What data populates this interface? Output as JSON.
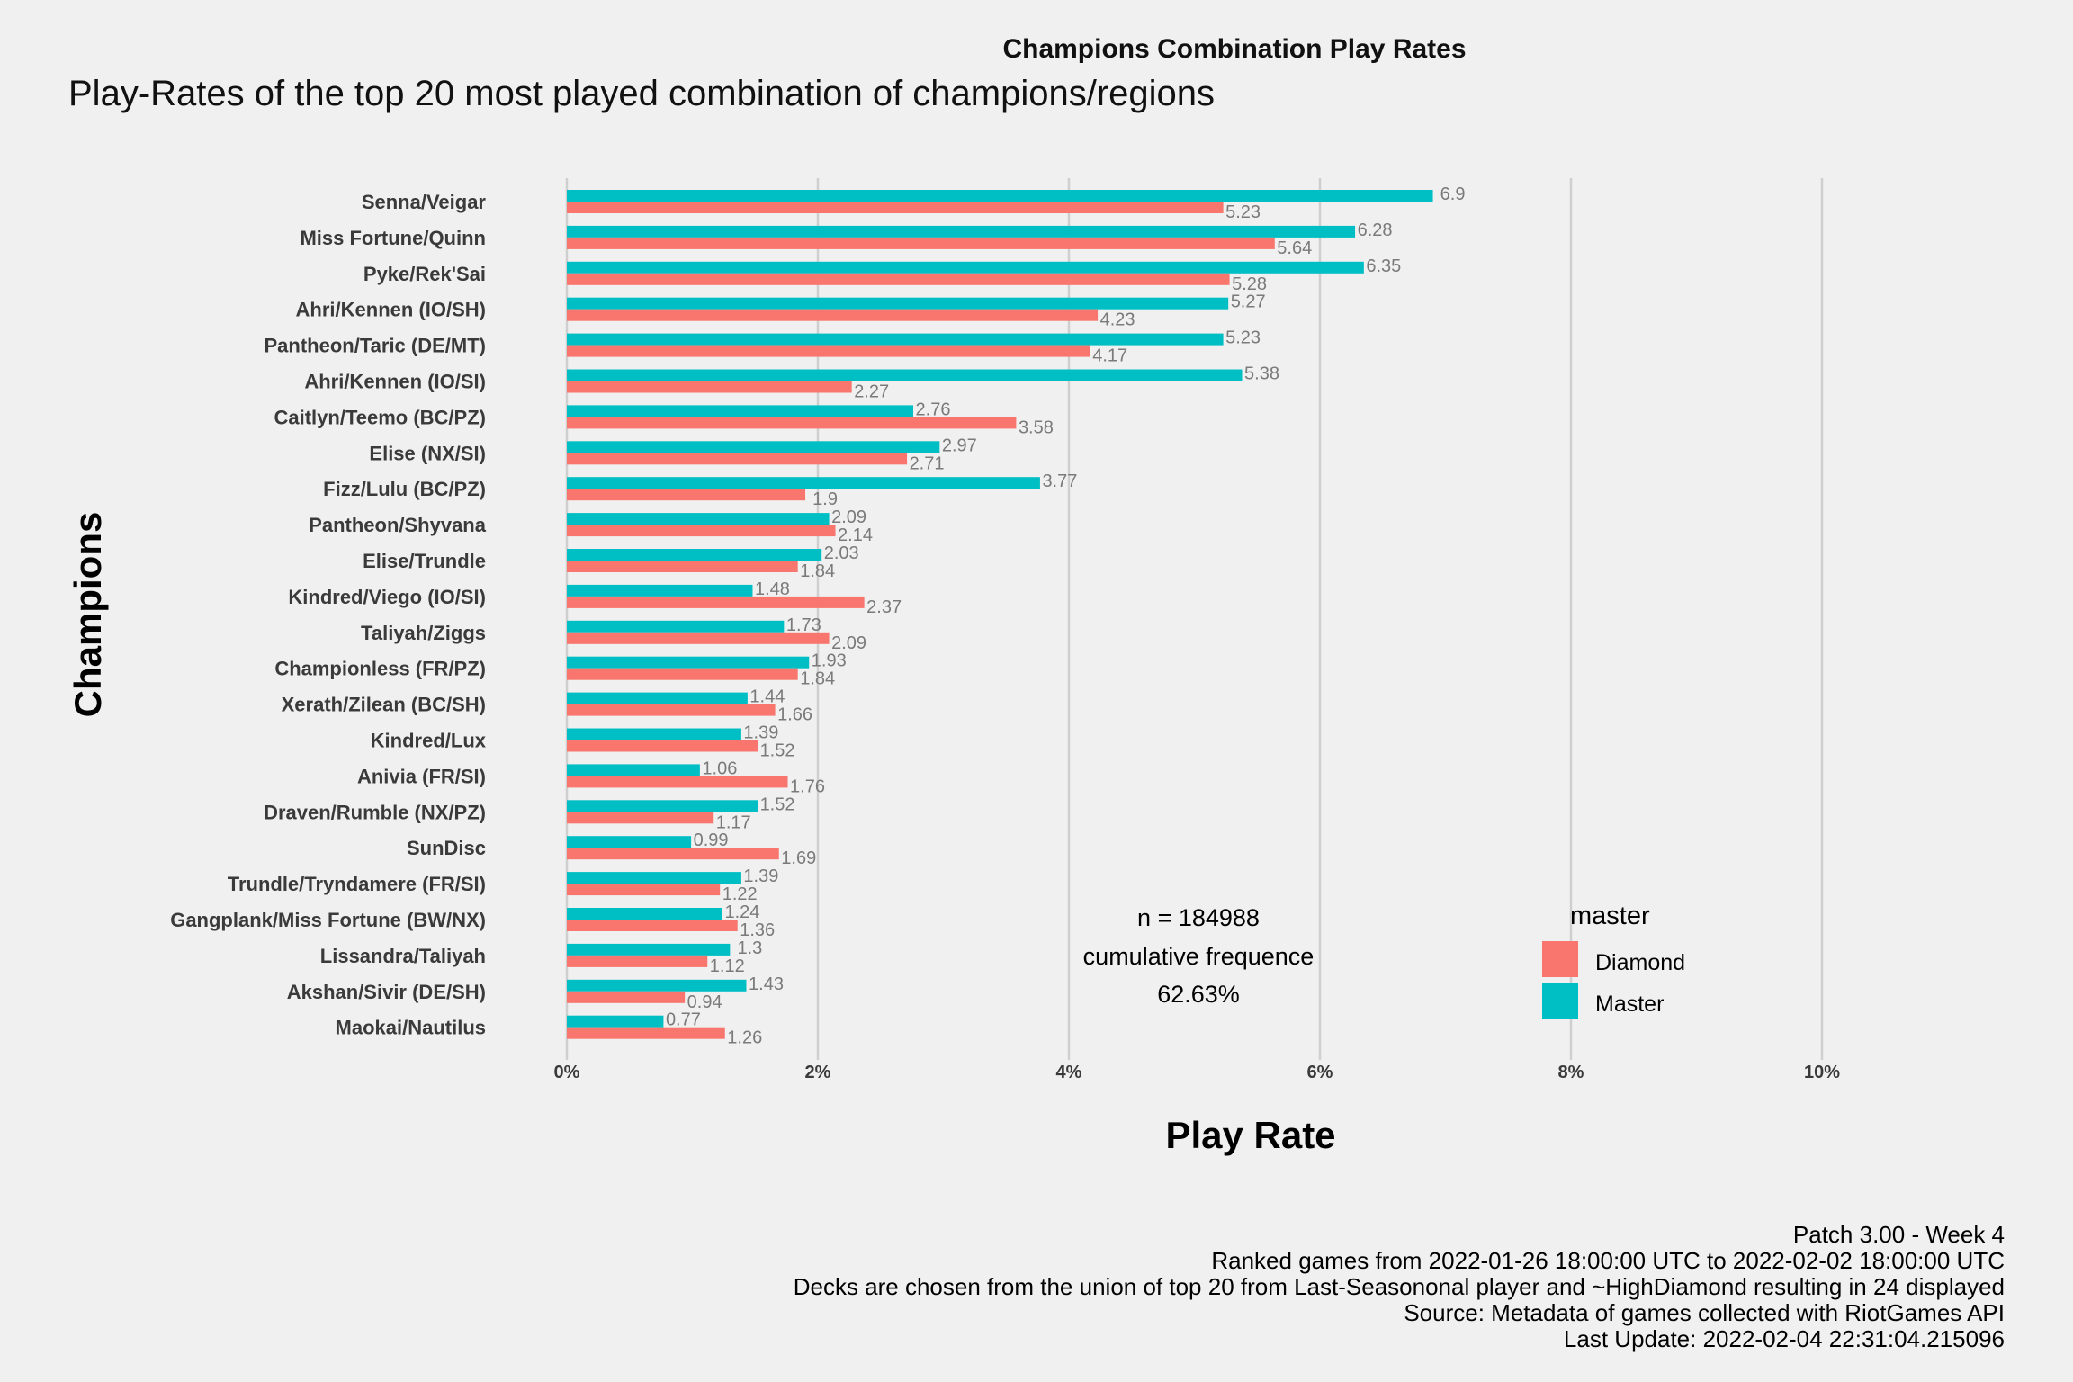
{
  "chart_data": {
    "type": "bar",
    "orientation": "horizontal",
    "header": "Champions Combination Play Rates",
    "title": "Play-Rates of the top 20 most played combination of champions/regions",
    "xlabel": "Play Rate",
    "ylabel": "Champions",
    "xlim": [
      0,
      10
    ],
    "x_ticks": [
      "0%",
      "2%",
      "4%",
      "6%",
      "8%",
      "10%"
    ],
    "x_tick_values": [
      0,
      2,
      4,
      6,
      8,
      10
    ],
    "grid": "vertical major lines",
    "legend": {
      "title": "master",
      "placement": "bottom-right",
      "entries": [
        {
          "name": "Diamond",
          "color": "#f8766d"
        },
        {
          "name": "Master",
          "color": "#00bfc4"
        }
      ]
    },
    "categories": [
      "Senna/Veigar",
      "Miss Fortune/Quinn",
      "Pyke/Rek'Sai",
      "Ahri/Kennen (IO/SH)",
      "Pantheon/Taric (DE/MT)",
      "Ahri/Kennen (IO/SI)",
      "Caitlyn/Teemo (BC/PZ)",
      "Elise (NX/SI)",
      "Fizz/Lulu (BC/PZ)",
      "Pantheon/Shyvana",
      "Elise/Trundle",
      "Kindred/Viego (IO/SI)",
      "Taliyah/Ziggs",
      "Championless (FR/PZ)",
      "Xerath/Zilean (BC/SH)",
      "Kindred/Lux",
      "Anivia (FR/SI)",
      "Draven/Rumble (NX/PZ)",
      "SunDisc",
      "Trundle/Tryndamere (FR/SI)",
      "Gangplank/Miss Fortune (BW/NX)",
      "Lissandra/Taliyah",
      "Akshan/Sivir (DE/SH)",
      "Maokai/Nautilus"
    ],
    "series": [
      {
        "name": "Master",
        "color": "#00bfc4",
        "values": [
          6.9,
          6.28,
          6.35,
          5.27,
          5.23,
          5.38,
          2.76,
          2.97,
          3.77,
          2.09,
          2.03,
          1.48,
          1.73,
          1.93,
          1.44,
          1.39,
          1.06,
          1.52,
          0.99,
          1.39,
          1.24,
          1.3,
          1.43,
          0.77
        ]
      },
      {
        "name": "Diamond",
        "color": "#f8766d",
        "values": [
          5.23,
          5.64,
          5.28,
          4.23,
          4.17,
          2.27,
          3.58,
          2.71,
          1.9,
          2.14,
          1.84,
          2.37,
          2.09,
          1.84,
          1.66,
          1.52,
          1.76,
          1.17,
          1.69,
          1.22,
          1.36,
          1.12,
          0.94,
          1.26
        ]
      }
    ],
    "annotation": [
      "n = 184988",
      "cumulative frequence",
      "62.63%"
    ],
    "caption": [
      "Patch 3.00 - Week 4",
      "Ranked games from 2022-01-26 18:00:00 UTC to 2022-02-02 18:00:00 UTC",
      "Decks are chosen from the union of top 20 from Last-Seasononal player and ~HighDiamond resulting in 24 displayed",
      "Source: Metadata of games collected with RiotGames API",
      "Last Update: 2022-02-04 22:31:04.215096"
    ]
  }
}
